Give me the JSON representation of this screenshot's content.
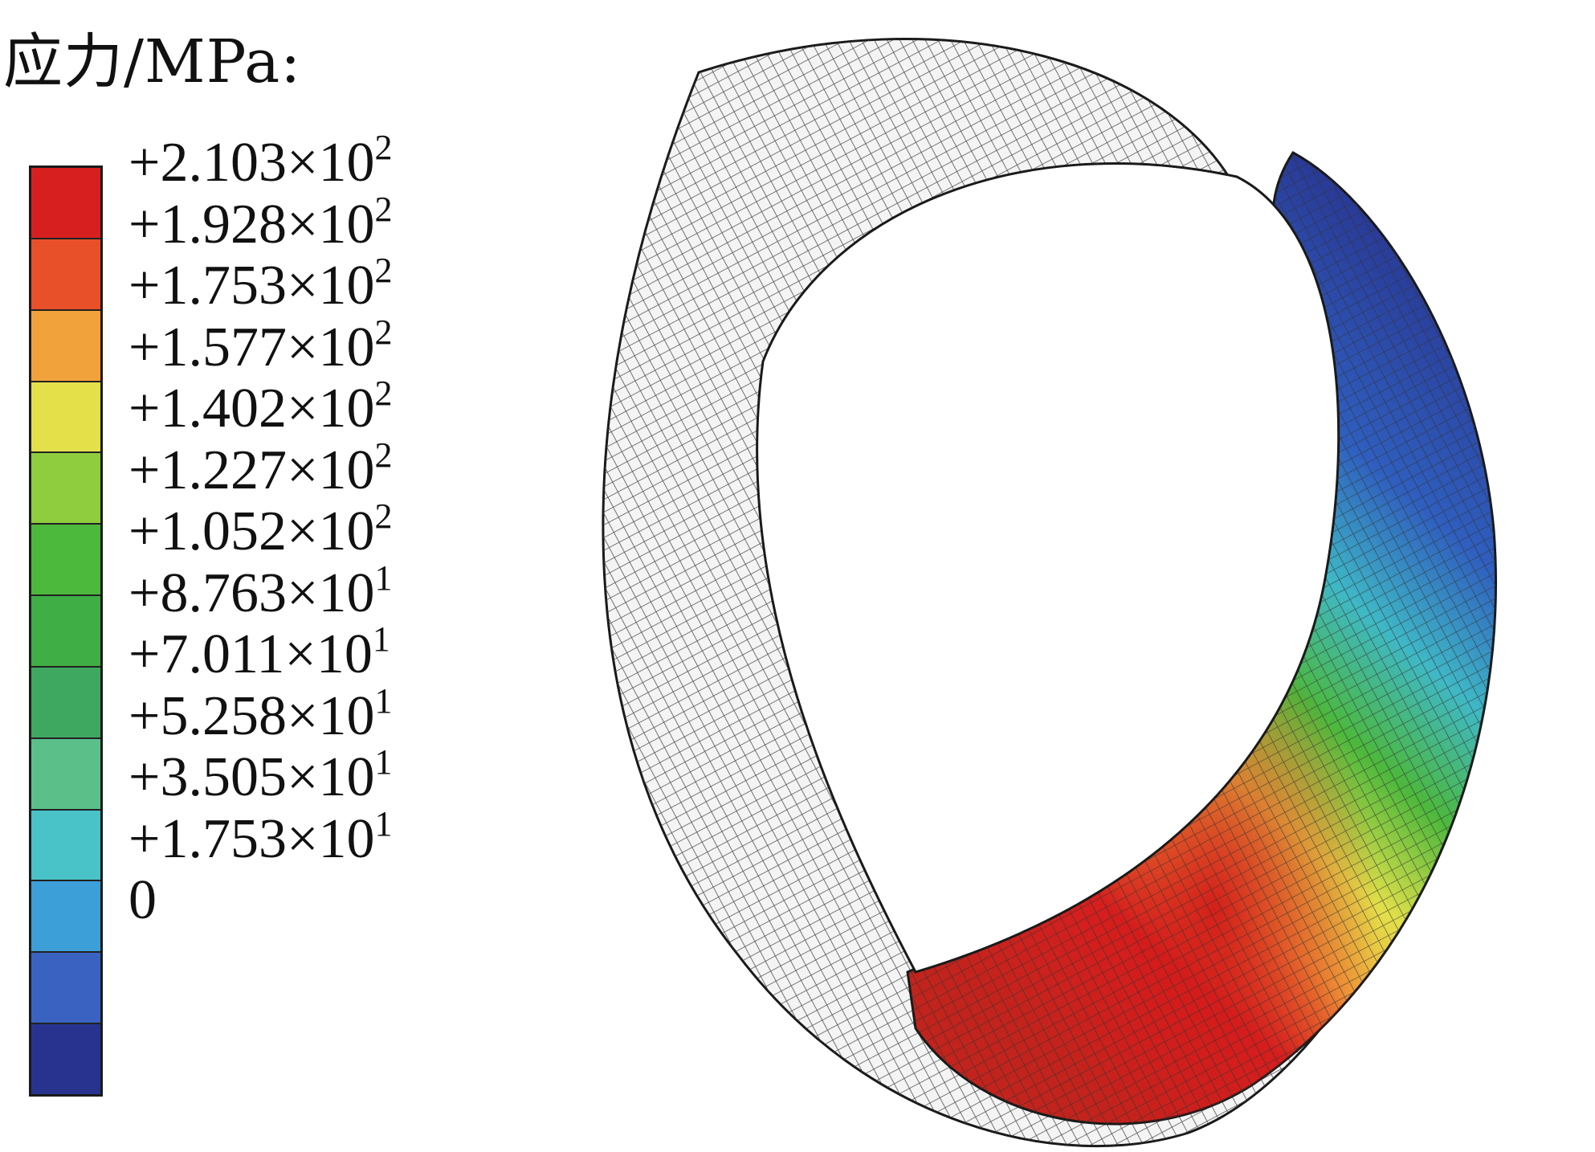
{
  "legend": {
    "title": "应力/MPa:",
    "levels": [
      {
        "label_prefix": "+2.103×10",
        "exp": "2",
        "color": "#d81f1f"
      },
      {
        "label_prefix": "+1.928×10",
        "exp": "2",
        "color": "#e8502a"
      },
      {
        "label_prefix": "+1.753×10",
        "exp": "2",
        "color": "#f2a23a"
      },
      {
        "label_prefix": "+1.577×10",
        "exp": "2",
        "color": "#e3e04a"
      },
      {
        "label_prefix": "+1.402×10",
        "exp": "2",
        "color": "#8fcc3e"
      },
      {
        "label_prefix": "+1.227×10",
        "exp": "2",
        "color": "#4cb83c"
      },
      {
        "label_prefix": "+1.052×10",
        "exp": "2",
        "color": "#3fae45"
      },
      {
        "label_prefix": "+8.763×10",
        "exp": "1",
        "color": "#3ea860"
      },
      {
        "label_prefix": "+7.011×10",
        "exp": "1",
        "color": "#5bbf8a"
      },
      {
        "label_prefix": "+5.258×10",
        "exp": "1",
        "color": "#49c2c8"
      },
      {
        "label_prefix": "+3.505×10",
        "exp": "1",
        "color": "#3d9fd8"
      },
      {
        "label_prefix": "+1.753×10",
        "exp": "1",
        "color": "#3a62c0"
      },
      {
        "label_prefix": "0",
        "exp": "",
        "color": "#28338f"
      }
    ]
  },
  "model": {
    "description_icon": "deformed-ring-mesh-icon",
    "colors": {
      "mesh_line": "#2a2a2a",
      "unstressed": "#f2f2f2",
      "low": "#2b3592",
      "high": "#d52a1e"
    }
  }
}
